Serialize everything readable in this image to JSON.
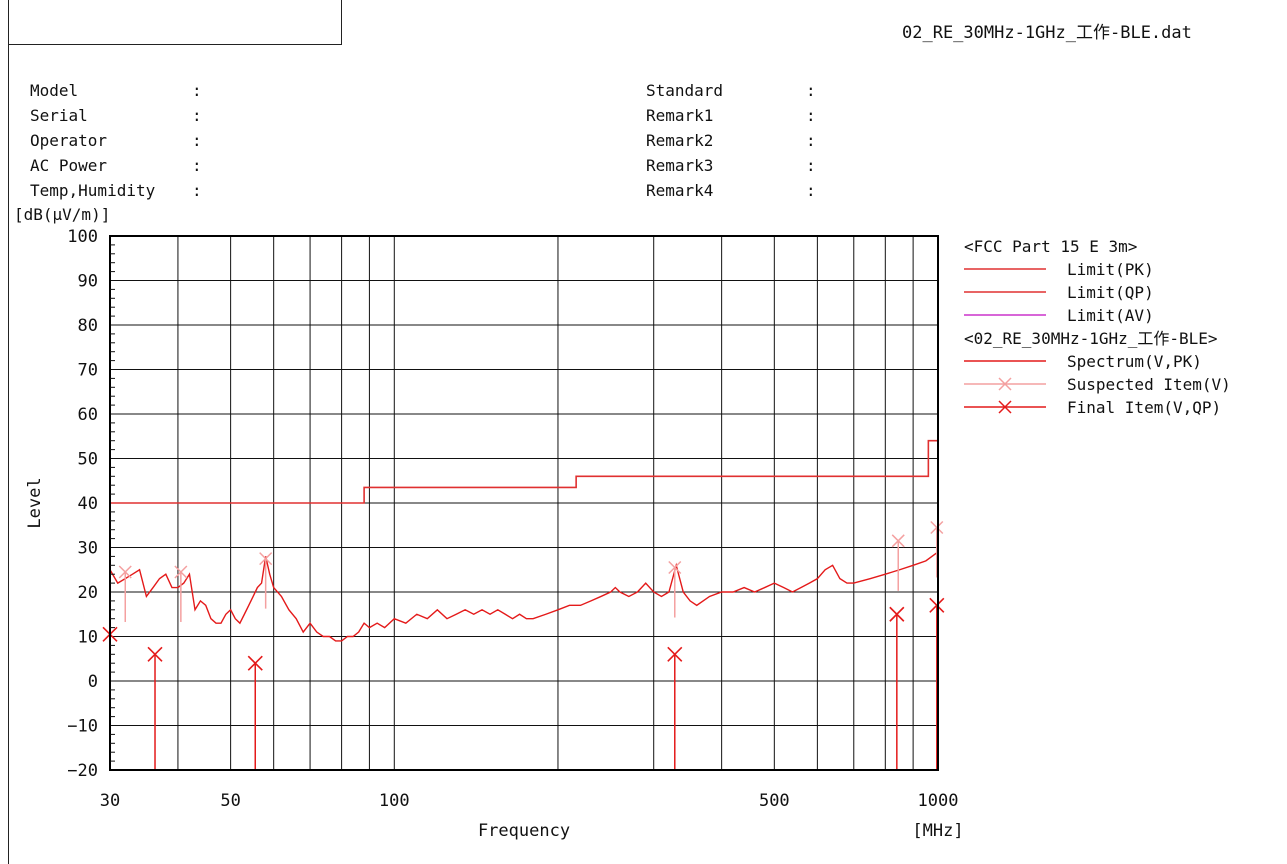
{
  "header": {
    "filename": "02_RE_30MHz-1GHz_工作-BLE.dat"
  },
  "info": {
    "left": [
      {
        "label": "Model",
        "value": ""
      },
      {
        "label": "Serial",
        "value": ""
      },
      {
        "label": "Operator",
        "value": ""
      },
      {
        "label": "AC Power",
        "value": ""
      },
      {
        "label": "Temp,Humidity",
        "value": ""
      }
    ],
    "right": [
      {
        "label": "Standard",
        "value": ""
      },
      {
        "label": "Remark1",
        "value": ""
      },
      {
        "label": "Remark2",
        "value": ""
      },
      {
        "label": "Remark3",
        "value": ""
      },
      {
        "label": "Remark4",
        "value": ""
      }
    ],
    "separator": ":"
  },
  "chart_data": {
    "type": "line",
    "xscale": "log",
    "xlim": [
      30,
      1000
    ],
    "ylim": [
      -20,
      100
    ],
    "grid": true,
    "legend_position": "right",
    "ylabel": "Level",
    "yunit": "[dB(μV/m)]",
    "xlabel": "Frequency",
    "xunit": "[MHz]",
    "x_ticks": [
      30,
      50,
      100,
      500,
      1000
    ],
    "y_ticks": [
      -20,
      -10,
      0,
      10,
      20,
      30,
      40,
      50,
      60,
      70,
      80,
      90,
      100
    ],
    "colors": {
      "limit_pk": "#e03030",
      "limit_qp": "#e03030",
      "limit_av": "#cc33cc",
      "spectrum": "#e41a1a",
      "suspected": "#f4a0a0",
      "final": "#e41a1a"
    },
    "legend": [
      {
        "kind": "header",
        "text": "<FCC Part 15 E 3m>"
      },
      {
        "kind": "line",
        "key": "limit_pk",
        "text": "Limit(PK)"
      },
      {
        "kind": "line",
        "key": "limit_qp",
        "text": "Limit(QP)"
      },
      {
        "kind": "line",
        "key": "limit_av",
        "text": "Limit(AV)"
      },
      {
        "kind": "header",
        "text": "<02_RE_30MHz-1GHz_工作-BLE>"
      },
      {
        "kind": "line",
        "key": "spectrum",
        "text": "Spectrum(V,PK)"
      },
      {
        "kind": "marker",
        "key": "suspected",
        "text": "Suspected Item(V)"
      },
      {
        "kind": "marker",
        "key": "final",
        "text": "Final Item(V,QP)"
      }
    ],
    "limit_qp": [
      {
        "x": 30,
        "y": 40
      },
      {
        "x": 88,
        "y": 40
      },
      {
        "x": 88,
        "y": 43.5
      },
      {
        "x": 216,
        "y": 43.5
      },
      {
        "x": 216,
        "y": 46
      },
      {
        "x": 960,
        "y": 46
      },
      {
        "x": 960,
        "y": 54
      },
      {
        "x": 1000,
        "y": 54
      }
    ],
    "spectrum": [
      {
        "x": 30,
        "y": 25
      },
      {
        "x": 31,
        "y": 22
      },
      {
        "x": 32,
        "y": 23
      },
      {
        "x": 33,
        "y": 24
      },
      {
        "x": 34,
        "y": 25
      },
      {
        "x": 35,
        "y": 19
      },
      {
        "x": 36,
        "y": 21
      },
      {
        "x": 37,
        "y": 23
      },
      {
        "x": 38,
        "y": 24
      },
      {
        "x": 39,
        "y": 21
      },
      {
        "x": 40,
        "y": 21
      },
      {
        "x": 41,
        "y": 22
      },
      {
        "x": 42,
        "y": 24
      },
      {
        "x": 43,
        "y": 16
      },
      {
        "x": 44,
        "y": 18
      },
      {
        "x": 45,
        "y": 17
      },
      {
        "x": 46,
        "y": 14
      },
      {
        "x": 47,
        "y": 13
      },
      {
        "x": 48,
        "y": 13
      },
      {
        "x": 49,
        "y": 15
      },
      {
        "x": 50,
        "y": 16
      },
      {
        "x": 51,
        "y": 14
      },
      {
        "x": 52,
        "y": 13
      },
      {
        "x": 53,
        "y": 15
      },
      {
        "x": 54,
        "y": 17
      },
      {
        "x": 55,
        "y": 19
      },
      {
        "x": 56,
        "y": 21
      },
      {
        "x": 57,
        "y": 22
      },
      {
        "x": 58,
        "y": 28
      },
      {
        "x": 59,
        "y": 24
      },
      {
        "x": 60,
        "y": 21
      },
      {
        "x": 62,
        "y": 19
      },
      {
        "x": 64,
        "y": 16
      },
      {
        "x": 66,
        "y": 14
      },
      {
        "x": 68,
        "y": 11
      },
      {
        "x": 70,
        "y": 13
      },
      {
        "x": 72,
        "y": 11
      },
      {
        "x": 74,
        "y": 10
      },
      {
        "x": 76,
        "y": 10
      },
      {
        "x": 78,
        "y": 9
      },
      {
        "x": 80,
        "y": 9
      },
      {
        "x": 82,
        "y": 10
      },
      {
        "x": 84,
        "y": 10
      },
      {
        "x": 86,
        "y": 11
      },
      {
        "x": 88,
        "y": 13
      },
      {
        "x": 90,
        "y": 12
      },
      {
        "x": 93,
        "y": 13
      },
      {
        "x": 96,
        "y": 12
      },
      {
        "x": 100,
        "y": 14
      },
      {
        "x": 105,
        "y": 13
      },
      {
        "x": 110,
        "y": 15
      },
      {
        "x": 115,
        "y": 14
      },
      {
        "x": 120,
        "y": 16
      },
      {
        "x": 125,
        "y": 14
      },
      {
        "x": 130,
        "y": 15
      },
      {
        "x": 135,
        "y": 16
      },
      {
        "x": 140,
        "y": 15
      },
      {
        "x": 145,
        "y": 16
      },
      {
        "x": 150,
        "y": 15
      },
      {
        "x": 155,
        "y": 16
      },
      {
        "x": 160,
        "y": 15
      },
      {
        "x": 165,
        "y": 14
      },
      {
        "x": 170,
        "y": 15
      },
      {
        "x": 175,
        "y": 14
      },
      {
        "x": 180,
        "y": 14
      },
      {
        "x": 190,
        "y": 15
      },
      {
        "x": 200,
        "y": 16
      },
      {
        "x": 210,
        "y": 17
      },
      {
        "x": 220,
        "y": 17
      },
      {
        "x": 230,
        "y": 18
      },
      {
        "x": 240,
        "y": 19
      },
      {
        "x": 250,
        "y": 20
      },
      {
        "x": 255,
        "y": 21
      },
      {
        "x": 260,
        "y": 20
      },
      {
        "x": 270,
        "y": 19
      },
      {
        "x": 280,
        "y": 20
      },
      {
        "x": 290,
        "y": 22
      },
      {
        "x": 300,
        "y": 20
      },
      {
        "x": 310,
        "y": 19
      },
      {
        "x": 320,
        "y": 20
      },
      {
        "x": 330,
        "y": 26
      },
      {
        "x": 340,
        "y": 20
      },
      {
        "x": 350,
        "y": 18
      },
      {
        "x": 360,
        "y": 17
      },
      {
        "x": 380,
        "y": 19
      },
      {
        "x": 400,
        "y": 20
      },
      {
        "x": 420,
        "y": 20
      },
      {
        "x": 440,
        "y": 21
      },
      {
        "x": 460,
        "y": 20
      },
      {
        "x": 480,
        "y": 21
      },
      {
        "x": 500,
        "y": 22
      },
      {
        "x": 520,
        "y": 21
      },
      {
        "x": 540,
        "y": 20
      },
      {
        "x": 560,
        "y": 21
      },
      {
        "x": 580,
        "y": 22
      },
      {
        "x": 600,
        "y": 23
      },
      {
        "x": 620,
        "y": 25
      },
      {
        "x": 640,
        "y": 26
      },
      {
        "x": 660,
        "y": 23
      },
      {
        "x": 680,
        "y": 22
      },
      {
        "x": 700,
        "y": 22
      },
      {
        "x": 750,
        "y": 23
      },
      {
        "x": 800,
        "y": 24
      },
      {
        "x": 850,
        "y": 25
      },
      {
        "x": 900,
        "y": 26
      },
      {
        "x": 950,
        "y": 27
      },
      {
        "x": 1000,
        "y": 29
      }
    ],
    "suspected_items": [
      {
        "x": 32,
        "y": 24.5
      },
      {
        "x": 40.5,
        "y": 24.5
      },
      {
        "x": 58,
        "y": 27.5
      },
      {
        "x": 328,
        "y": 25.5
      },
      {
        "x": 845,
        "y": 31.5
      },
      {
        "x": 995,
        "y": 34.5
      }
    ],
    "final_items": [
      {
        "x": 30,
        "y": 10.5
      },
      {
        "x": 36.3,
        "y": 6
      },
      {
        "x": 55.5,
        "y": 4
      },
      {
        "x": 328,
        "y": 6
      },
      {
        "x": 840,
        "y": 15
      },
      {
        "x": 995,
        "y": 17
      }
    ]
  }
}
